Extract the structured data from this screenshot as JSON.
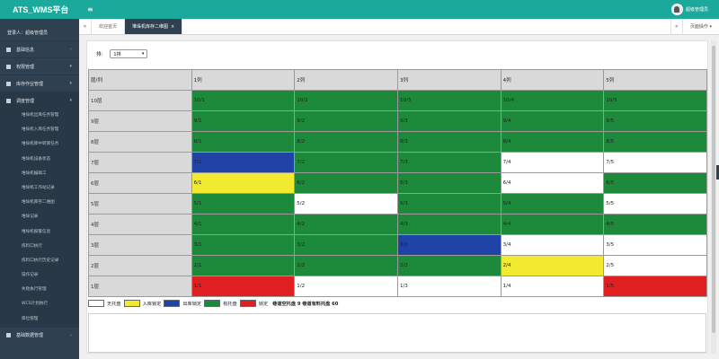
{
  "header": {
    "brand": "ATS_WMS平台",
    "menu_toggle": "≡",
    "user_name": "超级管理员"
  },
  "sidebar": {
    "login_user": "登录人：超级管理员",
    "groups_top": [
      {
        "label": "基础信息",
        "chev": "›"
      },
      {
        "label": "权限管理",
        "chev": "▾"
      },
      {
        "label": "库存作业管理",
        "chev": "▾"
      }
    ],
    "open_group": {
      "label": "调度管理",
      "chev": "▾"
    },
    "sub_items": [
      "堆垛机出库任务管理",
      "堆垛机入库任务管理",
      "堆垛机库中转库任务",
      "堆垛机设备状态",
      "堆垛机编辑工",
      "堆垛机工作站记录",
      "堆垛机库存二维图",
      "堆垛记录",
      "堆垛机报警信息",
      "拣料口执行",
      "拣料口执行历史记录",
      "操作记录",
      "失败执行管理",
      "WCS计划执行",
      "库位管理"
    ],
    "bottom_group": {
      "label": "基础数据管理",
      "chev": "›"
    }
  },
  "tabs": {
    "back": "«",
    "items": [
      {
        "label": "欢迎首页",
        "active": false
      },
      {
        "label": "堆垛机库存二维图",
        "close": "×",
        "active": true
      }
    ],
    "forward": "»",
    "page_ops": "页面操作 ▾"
  },
  "filter": {
    "label": "排:",
    "value": "1排",
    "arrow": "▾"
  },
  "grid": {
    "corner": "层/列",
    "columns": [
      "1列",
      "2列",
      "3列",
      "4列",
      "5列"
    ],
    "rows": [
      {
        "label": "10层",
        "cells": [
          {
            "text": "10/1",
            "state": "occupied"
          },
          {
            "text": "10/2",
            "state": "occupied"
          },
          {
            "text": "10/3",
            "state": "occupied"
          },
          {
            "text": "10/4",
            "state": "occupied"
          },
          {
            "text": "10/5",
            "state": "occupied"
          }
        ]
      },
      {
        "label": "9层",
        "cells": [
          {
            "text": "9/1",
            "state": "occupied"
          },
          {
            "text": "9/2",
            "state": "occupied"
          },
          {
            "text": "9/3",
            "state": "occupied"
          },
          {
            "text": "9/4",
            "state": "occupied"
          },
          {
            "text": "9/5",
            "state": "occupied"
          }
        ]
      },
      {
        "label": "8层",
        "cells": [
          {
            "text": "8/1",
            "state": "occupied"
          },
          {
            "text": "8/2",
            "state": "occupied"
          },
          {
            "text": "8/3",
            "state": "occupied"
          },
          {
            "text": "8/4",
            "state": "occupied"
          },
          {
            "text": "8/5",
            "state": "occupied"
          }
        ]
      },
      {
        "label": "7层",
        "cells": [
          {
            "text": "7/1",
            "state": "outbound_locked"
          },
          {
            "text": "7/2",
            "state": "occupied"
          },
          {
            "text": "7/3",
            "state": "occupied"
          },
          {
            "text": "7/4",
            "state": "empty"
          },
          {
            "text": "7/5",
            "state": "empty"
          }
        ]
      },
      {
        "label": "6层",
        "cells": [
          {
            "text": "6/1",
            "state": "inbound_locked"
          },
          {
            "text": "6/2",
            "state": "occupied"
          },
          {
            "text": "6/3",
            "state": "occupied"
          },
          {
            "text": "6/4",
            "state": "empty"
          },
          {
            "text": "6/5",
            "state": "occupied"
          }
        ]
      },
      {
        "label": "5层",
        "cells": [
          {
            "text": "5/1",
            "state": "occupied"
          },
          {
            "text": "5/2",
            "state": "empty"
          },
          {
            "text": "5/3",
            "state": "occupied"
          },
          {
            "text": "5/4",
            "state": "occupied"
          },
          {
            "text": "5/5",
            "state": "empty"
          }
        ]
      },
      {
        "label": "4层",
        "cells": [
          {
            "text": "4/1",
            "state": "occupied"
          },
          {
            "text": "4/2",
            "state": "occupied"
          },
          {
            "text": "4/3",
            "state": "occupied"
          },
          {
            "text": "4/4",
            "state": "occupied"
          },
          {
            "text": "4/5",
            "state": "occupied"
          }
        ]
      },
      {
        "label": "3层",
        "cells": [
          {
            "text": "3/1",
            "state": "occupied"
          },
          {
            "text": "3/2",
            "state": "occupied"
          },
          {
            "text": "3/3",
            "state": "outbound_locked"
          },
          {
            "text": "3/4",
            "state": "empty"
          },
          {
            "text": "3/5",
            "state": "empty"
          }
        ]
      },
      {
        "label": "2层",
        "cells": [
          {
            "text": "2/1",
            "state": "occupied"
          },
          {
            "text": "2/2",
            "state": "occupied"
          },
          {
            "text": "2/3",
            "state": "occupied"
          },
          {
            "text": "2/4",
            "state": "inbound_locked"
          },
          {
            "text": "2/5",
            "state": "empty"
          }
        ]
      },
      {
        "label": "1层",
        "cells": [
          {
            "text": "1/1",
            "state": "locked"
          },
          {
            "text": "1/2",
            "state": "empty"
          },
          {
            "text": "1/3",
            "state": "empty"
          },
          {
            "text": "1/4",
            "state": "empty"
          },
          {
            "text": "1/5",
            "state": "locked"
          }
        ]
      }
    ]
  },
  "legend": {
    "items": [
      {
        "label": "无托盘",
        "state": "empty"
      },
      {
        "label": "入库锁定",
        "state": "inbound_locked"
      },
      {
        "label": "出库锁定",
        "state": "outbound_locked"
      },
      {
        "label": "有托盘",
        "state": "occupied"
      },
      {
        "label": "锁定",
        "state": "locked"
      }
    ],
    "summary": "巷道空托盘 9 巷道有料托盘 60"
  },
  "colors": {
    "empty": "#ffffff",
    "inbound_locked": "#f2ea2e",
    "outbound_locked": "#1f43a6",
    "occupied": "#1c8a3a",
    "locked": "#e02020",
    "topbar": "#1aa99a",
    "sidebar": "#2f4050"
  },
  "icons": {
    "group_icon": "square-icon",
    "avatar": "user-avatar-icon"
  }
}
